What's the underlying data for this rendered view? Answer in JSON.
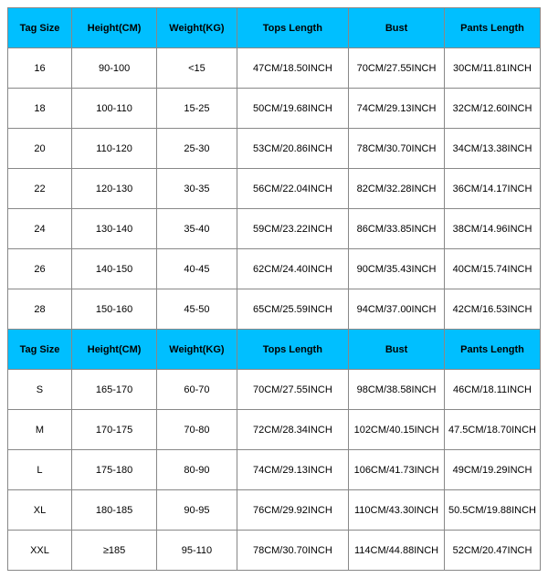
{
  "table": {
    "header_bg": "#00bfff",
    "border_color": "#888888",
    "text_color": "#000000",
    "font_size": 11,
    "columns": [
      "Tag Size",
      "Height(CM)",
      "Weight(KG)",
      "Tops Length",
      "Bust",
      "Pants Length"
    ],
    "col_widths_pct": [
      12,
      16,
      15,
      21,
      18,
      18
    ],
    "section1_rows": [
      [
        "16",
        "90-100",
        "<15",
        "47CM/18.50INCH",
        "70CM/27.55INCH",
        "30CM/11.81INCH"
      ],
      [
        "18",
        "100-110",
        "15-25",
        "50CM/19.68INCH",
        "74CM/29.13INCH",
        "32CM/12.60INCH"
      ],
      [
        "20",
        "110-120",
        "25-30",
        "53CM/20.86INCH",
        "78CM/30.70INCH",
        "34CM/13.38INCH"
      ],
      [
        "22",
        "120-130",
        "30-35",
        "56CM/22.04INCH",
        "82CM/32.28INCH",
        "36CM/14.17INCH"
      ],
      [
        "24",
        "130-140",
        "35-40",
        "59CM/23.22INCH",
        "86CM/33.85INCH",
        "38CM/14.96INCH"
      ],
      [
        "26",
        "140-150",
        "40-45",
        "62CM/24.40INCH",
        "90CM/35.43INCH",
        "40CM/15.74INCH"
      ],
      [
        "28",
        "150-160",
        "45-50",
        "65CM/25.59INCH",
        "94CM/37.00INCH",
        "42CM/16.53INCH"
      ]
    ],
    "section2_rows": [
      [
        "S",
        "165-170",
        "60-70",
        "70CM/27.55INCH",
        "98CM/38.58INCH",
        "46CM/18.11INCH"
      ],
      [
        "M",
        "170-175",
        "70-80",
        "72CM/28.34INCH",
        "102CM/40.15INCH",
        "47.5CM/18.70INCH"
      ],
      [
        "L",
        "175-180",
        "80-90",
        "74CM/29.13INCH",
        "106CM/41.73INCH",
        "49CM/19.29INCH"
      ],
      [
        "XL",
        "180-185",
        "90-95",
        "76CM/29.92INCH",
        "110CM/43.30INCH",
        "50.5CM/19.88INCH"
      ],
      [
        "XXL",
        "≥185",
        "95-110",
        "78CM/30.70INCH",
        "114CM/44.88INCH",
        "52CM/20.47INCH"
      ]
    ]
  }
}
